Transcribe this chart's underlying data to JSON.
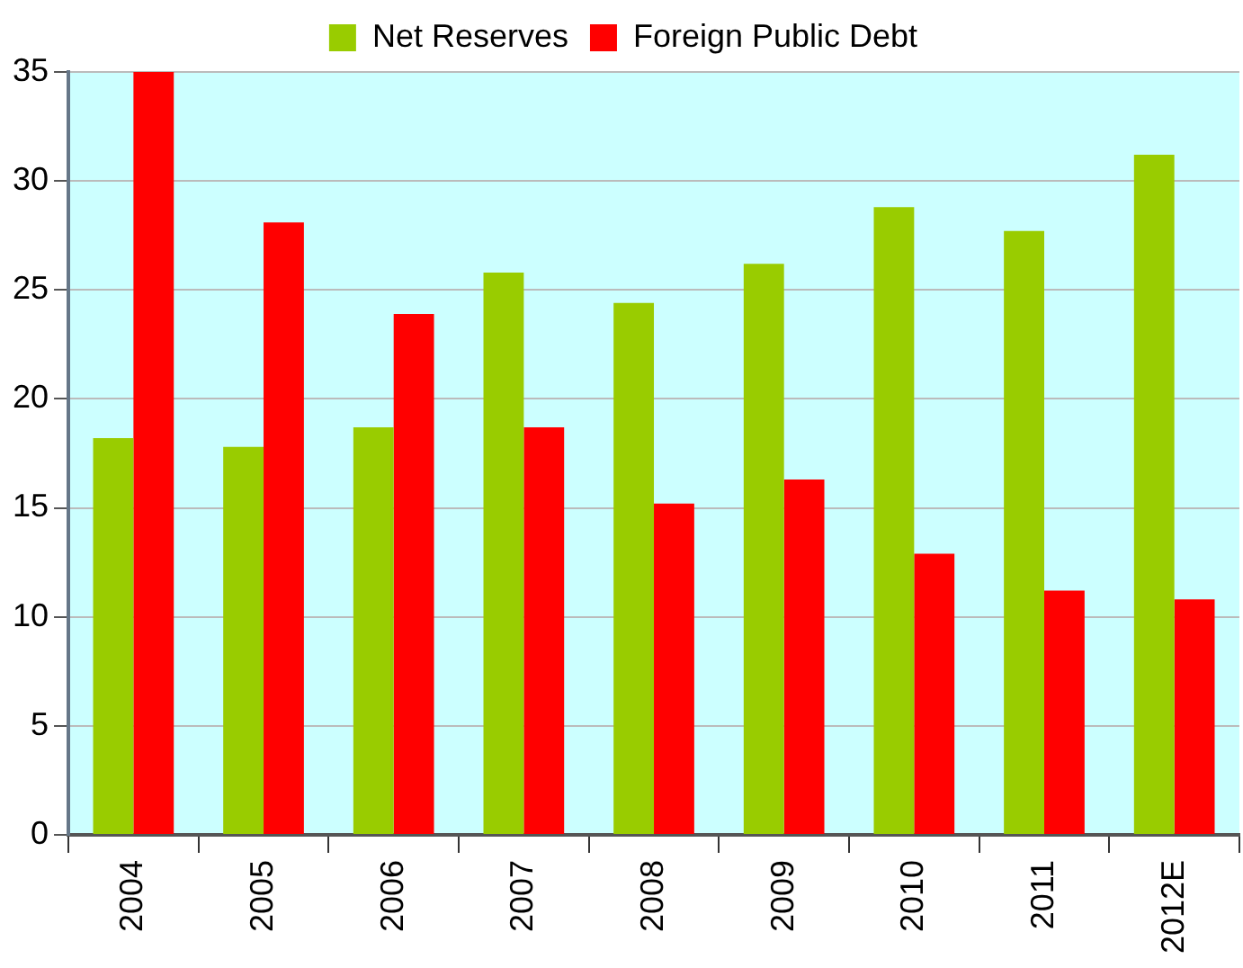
{
  "chart_data": {
    "type": "bar",
    "categories": [
      "2004",
      "2005",
      "2006",
      "2007",
      "2008",
      "2009",
      "2010",
      "2011",
      "2012E"
    ],
    "series": [
      {
        "name": "Net Reserves",
        "color": "#99cc00",
        "values": [
          18.2,
          17.8,
          18.7,
          25.8,
          24.4,
          26.2,
          28.8,
          27.7,
          31.2
        ]
      },
      {
        "name": "Foreign Public Debt",
        "color": "#ff0000",
        "values": [
          35,
          28.1,
          23.9,
          18.7,
          15.2,
          16.3,
          12.9,
          11.2,
          10.8
        ]
      }
    ],
    "ylim": [
      0,
      35
    ],
    "yticks": [
      0,
      5,
      10,
      15,
      20,
      25,
      30,
      35
    ],
    "grid": "y",
    "legend": "top"
  }
}
